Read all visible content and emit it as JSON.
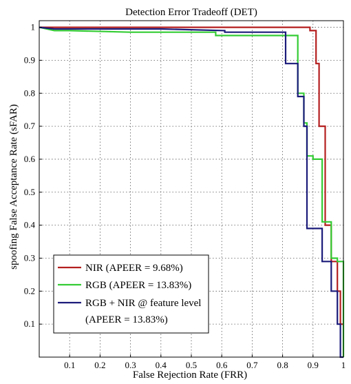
{
  "chart_data": {
    "type": "line",
    "title": "Detection Error Tradeoff (DET)",
    "xlabel": "False Rejection Rate (FRR)",
    "ylabel": "spoofing False Acceptance Rate (sFAR)",
    "xlim": [
      0,
      1
    ],
    "ylim": [
      0,
      1.02
    ],
    "xticks": [
      "0.1",
      "0.2",
      "0.3",
      "0.4",
      "0.5",
      "0.6",
      "0.7",
      "0.8",
      "0.9",
      "1"
    ],
    "yticks": [
      "0.1",
      "0.2",
      "0.3",
      "0.4",
      "0.5",
      "0.6",
      "0.7",
      "0.8",
      "0.9",
      "1"
    ],
    "grid": true,
    "legend_position": "bottom-left",
    "series": [
      {
        "name": "NIR (APEER = 9.68%)",
        "color": "#b41e1e",
        "x": [
          0,
          0.89,
          0.89,
          0.91,
          0.91,
          0.92,
          0.92,
          0.94,
          0.94,
          0.96,
          0.96,
          0.98,
          0.98,
          0.99,
          0.99,
          1.0
        ],
        "y": [
          1.0,
          1.0,
          0.99,
          0.99,
          0.89,
          0.89,
          0.7,
          0.7,
          0.4,
          0.4,
          0.29,
          0.29,
          0.2,
          0.2,
          0.1,
          0.1
        ]
      },
      {
        "name": "RGB (APEER = 13.83%)",
        "color": "#33cc33",
        "x": [
          0,
          0.05,
          0.1,
          0.3,
          0.58,
          0.58,
          0.85,
          0.85,
          0.87,
          0.87,
          0.88,
          0.88,
          0.9,
          0.9,
          0.93,
          0.93,
          0.96,
          0.96,
          0.98,
          0.98,
          1.0,
          1.0
        ],
        "y": [
          1.0,
          0.99,
          0.99,
          0.985,
          0.985,
          0.975,
          0.975,
          0.8,
          0.8,
          0.71,
          0.71,
          0.61,
          0.61,
          0.6,
          0.6,
          0.41,
          0.41,
          0.3,
          0.3,
          0.29,
          0.29,
          0.0
        ]
      },
      {
        "name": "RGB + NIR @ feature level (APEER = 13.83%)",
        "color": "#1a1a7a",
        "x": [
          0,
          0.05,
          0.4,
          0.61,
          0.61,
          0.81,
          0.81,
          0.85,
          0.85,
          0.87,
          0.87,
          0.88,
          0.88,
          0.93,
          0.93,
          0.96,
          0.96,
          0.98,
          0.98,
          0.99,
          0.99,
          1.0
        ],
        "y": [
          1.0,
          0.995,
          0.995,
          0.99,
          0.985,
          0.985,
          0.89,
          0.89,
          0.79,
          0.79,
          0.7,
          0.7,
          0.39,
          0.39,
          0.29,
          0.29,
          0.2,
          0.2,
          0.1,
          0.1,
          0.0,
          0.0
        ]
      }
    ],
    "legend_lines": [
      "NIR (APEER = 9.68%)",
      "RGB (APEER = 13.83%)",
      "RGB + NIR @ feature level",
      "(APEER = 13.83%)"
    ]
  }
}
